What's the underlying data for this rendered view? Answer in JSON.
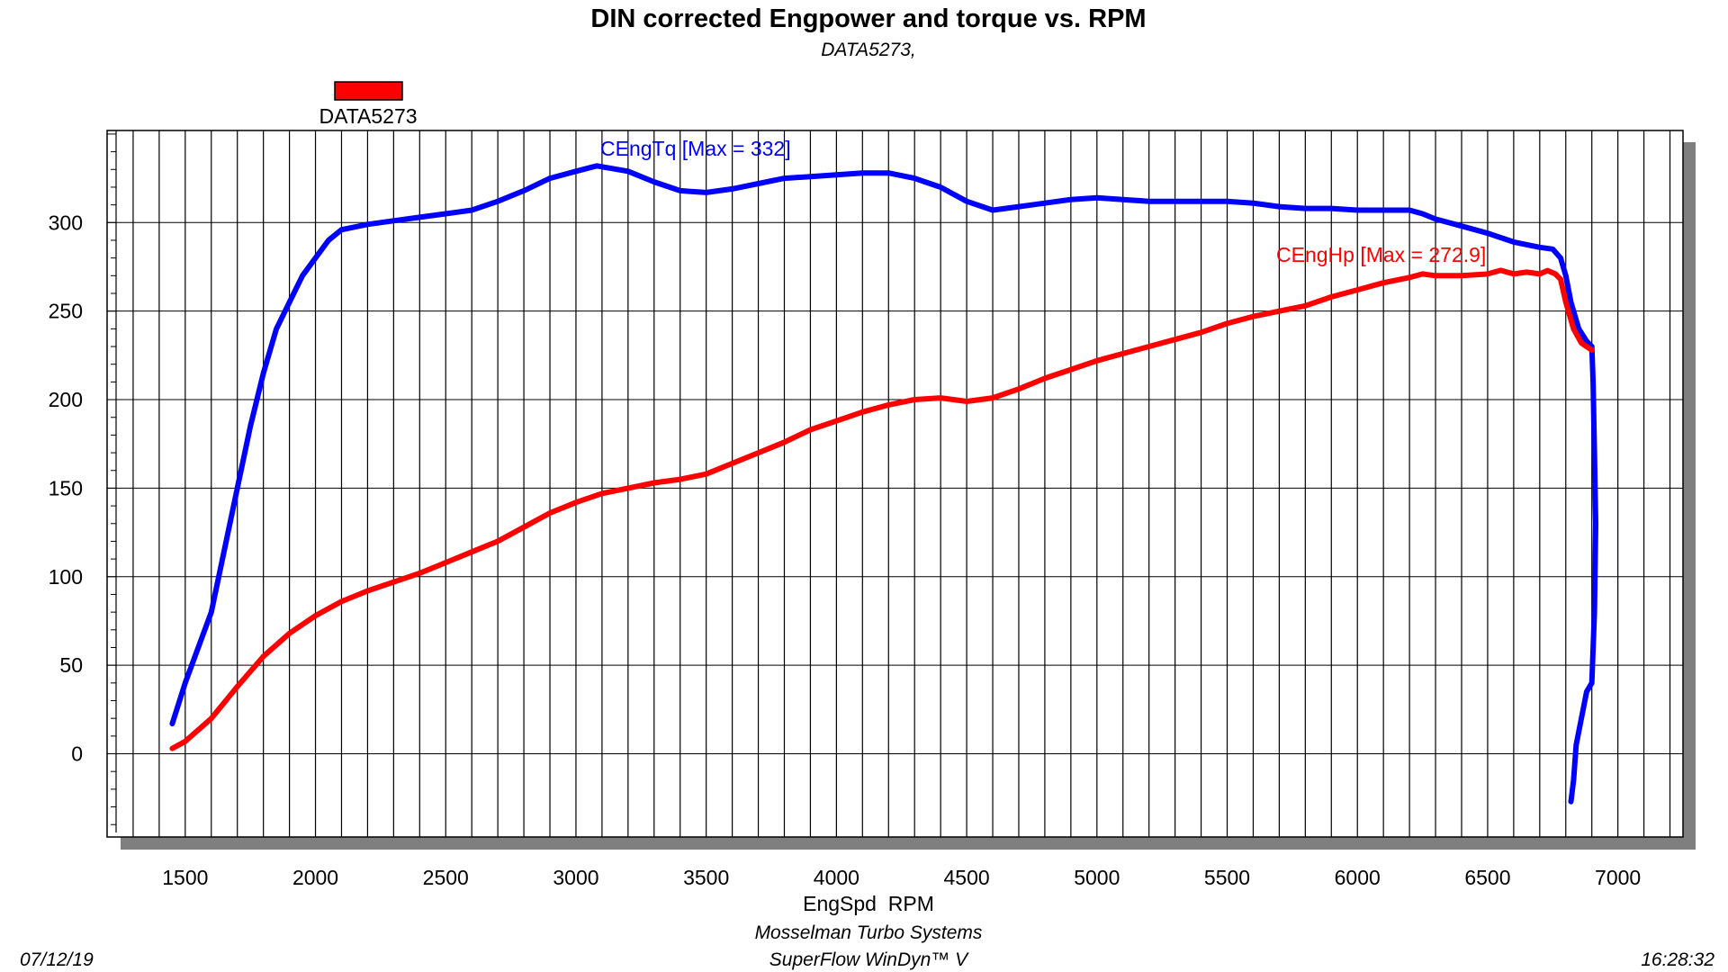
{
  "chart_data": {
    "type": "line",
    "title": "DIN corrected Engpower and torque vs. RPM",
    "subtitle": "DATA5273,",
    "xlabel": "EngSpd  RPM",
    "ylabel": "",
    "xlim": [
      1200,
      7250
    ],
    "ylim": [
      -47,
      352
    ],
    "x_ticks": [
      1500,
      2000,
      2500,
      3000,
      3500,
      4000,
      4500,
      5000,
      5500,
      6000,
      6500,
      7000
    ],
    "y_ticks": [
      0,
      50,
      100,
      150,
      200,
      250,
      300
    ],
    "legend": {
      "label": "DATA5273",
      "color": "#ff0000",
      "placement": "top-left"
    },
    "series": [
      {
        "name": "CEngTq",
        "annotation": "CEngTq [Max = 332]",
        "color": "#0000ff",
        "points": [
          [
            1450,
            17
          ],
          [
            1500,
            40
          ],
          [
            1600,
            80
          ],
          [
            1700,
            150
          ],
          [
            1750,
            185
          ],
          [
            1800,
            215
          ],
          [
            1850,
            240
          ],
          [
            1900,
            255
          ],
          [
            1950,
            270
          ],
          [
            2000,
            280
          ],
          [
            2050,
            290
          ],
          [
            2100,
            296
          ],
          [
            2200,
            299
          ],
          [
            2300,
            301
          ],
          [
            2400,
            303
          ],
          [
            2500,
            305
          ],
          [
            2600,
            307
          ],
          [
            2700,
            312
          ],
          [
            2800,
            318
          ],
          [
            2900,
            325
          ],
          [
            3000,
            329
          ],
          [
            3080,
            332
          ],
          [
            3200,
            329
          ],
          [
            3300,
            323
          ],
          [
            3400,
            318
          ],
          [
            3500,
            317
          ],
          [
            3600,
            319
          ],
          [
            3700,
            322
          ],
          [
            3800,
            325
          ],
          [
            3900,
            326
          ],
          [
            4000,
            327
          ],
          [
            4100,
            328
          ],
          [
            4200,
            328
          ],
          [
            4300,
            325
          ],
          [
            4400,
            320
          ],
          [
            4500,
            312
          ],
          [
            4600,
            307
          ],
          [
            4700,
            309
          ],
          [
            4800,
            311
          ],
          [
            4900,
            313
          ],
          [
            5000,
            314
          ],
          [
            5100,
            313
          ],
          [
            5200,
            312
          ],
          [
            5300,
            312
          ],
          [
            5400,
            312
          ],
          [
            5500,
            312
          ],
          [
            5600,
            311
          ],
          [
            5700,
            309
          ],
          [
            5800,
            308
          ],
          [
            5900,
            308
          ],
          [
            6000,
            307
          ],
          [
            6100,
            307
          ],
          [
            6200,
            307
          ],
          [
            6250,
            305
          ],
          [
            6300,
            302
          ],
          [
            6400,
            298
          ],
          [
            6500,
            294
          ],
          [
            6600,
            289
          ],
          [
            6700,
            286
          ],
          [
            6750,
            285
          ],
          [
            6780,
            280
          ],
          [
            6800,
            270
          ],
          [
            6820,
            255
          ],
          [
            6850,
            240
          ],
          [
            6880,
            233
          ],
          [
            6900,
            230
          ],
          [
            6905,
            210
          ],
          [
            6910,
            170
          ],
          [
            6915,
            130
          ],
          [
            6910,
            80
          ],
          [
            6900,
            40
          ],
          [
            6880,
            35
          ],
          [
            6860,
            20
          ],
          [
            6840,
            5
          ],
          [
            6830,
            -15
          ],
          [
            6820,
            -27
          ]
        ]
      },
      {
        "name": "CEngHp",
        "annotation": "CEngHp [Max = 272.9]",
        "color": "#ff0000",
        "points": [
          [
            1450,
            3
          ],
          [
            1500,
            7
          ],
          [
            1600,
            20
          ],
          [
            1700,
            38
          ],
          [
            1800,
            55
          ],
          [
            1900,
            68
          ],
          [
            2000,
            78
          ],
          [
            2100,
            86
          ],
          [
            2200,
            92
          ],
          [
            2300,
            97
          ],
          [
            2400,
            102
          ],
          [
            2500,
            108
          ],
          [
            2600,
            114
          ],
          [
            2700,
            120
          ],
          [
            2800,
            128
          ],
          [
            2900,
            136
          ],
          [
            3000,
            142
          ],
          [
            3100,
            147
          ],
          [
            3200,
            150
          ],
          [
            3300,
            153
          ],
          [
            3400,
            155
          ],
          [
            3500,
            158
          ],
          [
            3600,
            164
          ],
          [
            3700,
            170
          ],
          [
            3800,
            176
          ],
          [
            3900,
            183
          ],
          [
            4000,
            188
          ],
          [
            4100,
            193
          ],
          [
            4200,
            197
          ],
          [
            4300,
            200
          ],
          [
            4400,
            201
          ],
          [
            4500,
            199
          ],
          [
            4600,
            201
          ],
          [
            4700,
            206
          ],
          [
            4800,
            212
          ],
          [
            4900,
            217
          ],
          [
            5000,
            222
          ],
          [
            5100,
            226
          ],
          [
            5200,
            230
          ],
          [
            5300,
            234
          ],
          [
            5400,
            238
          ],
          [
            5500,
            243
          ],
          [
            5600,
            247
          ],
          [
            5700,
            250
          ],
          [
            5800,
            253
          ],
          [
            5900,
            258
          ],
          [
            6000,
            262
          ],
          [
            6100,
            266
          ],
          [
            6200,
            269
          ],
          [
            6250,
            271
          ],
          [
            6300,
            270
          ],
          [
            6400,
            270
          ],
          [
            6500,
            271
          ],
          [
            6550,
            273
          ],
          [
            6600,
            271
          ],
          [
            6650,
            272
          ],
          [
            6700,
            271
          ],
          [
            6730,
            272.9
          ],
          [
            6760,
            271
          ],
          [
            6780,
            268
          ],
          [
            6800,
            255
          ],
          [
            6830,
            240
          ],
          [
            6860,
            232
          ],
          [
            6900,
            228
          ]
        ]
      }
    ],
    "footer": {
      "date": "07/12/19",
      "company": "Mosselman Turbo Systems",
      "software": "SuperFlow WinDyn™ V",
      "time": "16:28:32"
    }
  }
}
